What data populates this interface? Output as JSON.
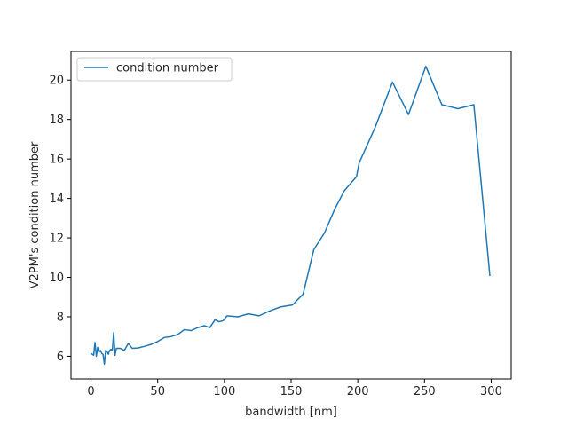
{
  "chart_data": {
    "type": "line",
    "title": "",
    "xlabel": "bandwidth [nm]",
    "ylabel": "V2PM's condition number",
    "xlim": [
      -15,
      315
    ],
    "ylim": [
      4.85,
      21.45
    ],
    "xticks": [
      0,
      50,
      100,
      150,
      200,
      250,
      300
    ],
    "yticks": [
      6,
      8,
      10,
      12,
      14,
      16,
      18,
      20
    ],
    "grid": false,
    "legend_position": "top-left",
    "series": [
      {
        "name": "condition number",
        "color": "#1f77b4",
        "x": [
          0,
          2,
          3,
          4,
          5,
          6,
          7,
          8,
          9,
          10,
          11,
          12,
          13,
          14,
          15,
          16,
          17,
          18,
          19,
          20,
          22,
          25,
          28,
          31,
          35,
          40,
          45,
          50,
          55,
          60,
          65,
          70,
          75,
          80,
          85,
          89,
          93,
          96,
          99,
          102,
          110,
          118,
          126,
          134,
          142,
          151,
          159,
          167,
          175,
          183,
          190,
          199,
          201,
          213,
          226,
          238,
          251,
          263,
          275,
          287,
          299
        ],
        "y": [
          6.15,
          6.05,
          6.7,
          6.0,
          6.45,
          6.2,
          6.3,
          6.15,
          6.1,
          5.6,
          6.3,
          6.25,
          6.1,
          6.3,
          6.35,
          6.3,
          7.2,
          6.05,
          6.4,
          6.4,
          6.4,
          6.3,
          6.65,
          6.4,
          6.42,
          6.5,
          6.6,
          6.75,
          6.95,
          7.0,
          7.1,
          7.35,
          7.3,
          7.45,
          7.55,
          7.45,
          7.85,
          7.75,
          7.8,
          8.05,
          8.0,
          8.15,
          8.05,
          8.3,
          8.5,
          8.6,
          9.15,
          11.4,
          12.25,
          13.5,
          14.4,
          15.1,
          15.8,
          17.6,
          19.9,
          18.25,
          20.7,
          18.75,
          18.55,
          18.75,
          10.1
        ]
      }
    ]
  }
}
